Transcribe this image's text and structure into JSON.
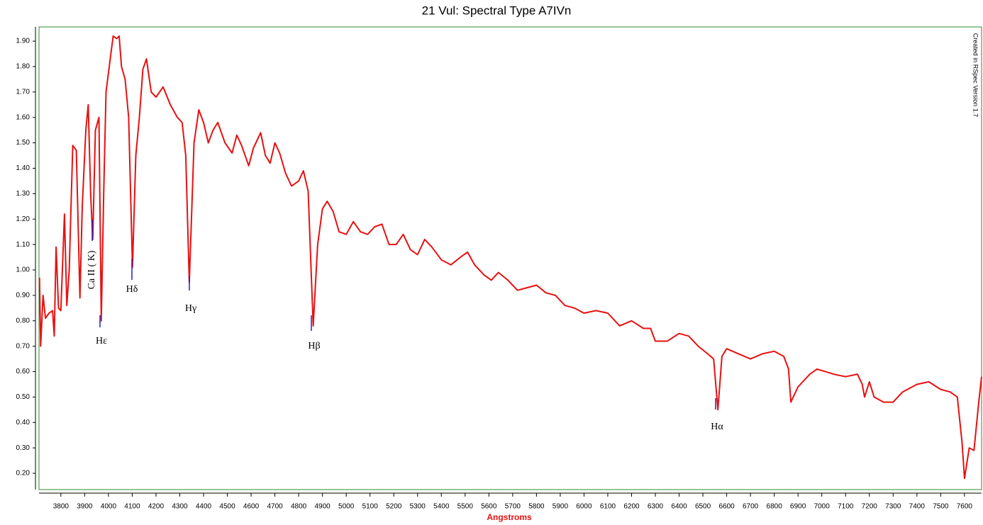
{
  "chart_data": {
    "type": "line",
    "title": "21 Vul: Spectral Type A7IVn",
    "xlabel": "Angstroms",
    "note": "Created in RSpec Version 1.7",
    "color": "#e81010",
    "xlim": [
      3708,
      7672
    ],
    "ylim": [
      0.136,
      1.956
    ],
    "xticks": [
      3800,
      3900,
      4000,
      4100,
      4200,
      4300,
      4400,
      4500,
      4600,
      4700,
      4800,
      4900,
      5000,
      5100,
      5200,
      5300,
      5400,
      5500,
      5600,
      5700,
      5800,
      5900,
      6000,
      6100,
      6200,
      6300,
      6400,
      6500,
      6600,
      6700,
      6800,
      6900,
      7000,
      7100,
      7200,
      7300,
      7400,
      7500,
      7600
    ],
    "yticks": [
      {
        "value": 0.2,
        "label": "0.20"
      },
      {
        "value": 0.3,
        "label": "0.30"
      },
      {
        "value": 0.4,
        "label": "0.40"
      },
      {
        "value": 0.5,
        "label": "0.50"
      },
      {
        "value": 0.6,
        "label": "0.60"
      },
      {
        "value": 0.7,
        "label": "0.70"
      },
      {
        "value": 0.8,
        "label": "0.80"
      },
      {
        "value": 0.9,
        "label": "0.90"
      },
      {
        "value": 1.0,
        "label": "1.00"
      },
      {
        "value": 1.1,
        "label": "1.10"
      },
      {
        "value": 1.2,
        "label": "1.20"
      },
      {
        "value": 1.3,
        "label": "1.30"
      },
      {
        "value": 1.4,
        "label": "1.40"
      },
      {
        "value": 1.5,
        "label": "1.50"
      },
      {
        "value": 1.6,
        "label": "1.60"
      },
      {
        "value": 1.7,
        "label": "1.70"
      },
      {
        "value": 1.8,
        "label": "1.80"
      },
      {
        "value": 1.9,
        "label": "1.90"
      }
    ],
    "annotations": [
      "Ca II ( K)",
      "Hε",
      "Hδ",
      "Hγ",
      "Hβ",
      "Hα"
    ],
    "x": [
      3710,
      3715,
      3725,
      3735,
      3750,
      3765,
      3772,
      3780,
      3790,
      3800,
      3815,
      3825,
      3835,
      3850,
      3865,
      3880,
      3890,
      3905,
      3915,
      3925,
      3934,
      3945,
      3960,
      3970,
      3980,
      3990,
      4010,
      4020,
      4035,
      4045,
      4055,
      4070,
      4085,
      4101,
      4115,
      4130,
      4145,
      4160,
      4180,
      4200,
      4230,
      4260,
      4290,
      4310,
      4325,
      4340,
      4360,
      4380,
      4400,
      4420,
      4440,
      4460,
      4490,
      4520,
      4540,
      4560,
      4590,
      4610,
      4640,
      4660,
      4680,
      4700,
      4720,
      4745,
      4770,
      4800,
      4820,
      4840,
      4861,
      4880,
      4900,
      4920,
      4945,
      4970,
      5000,
      5030,
      5060,
      5090,
      5120,
      5150,
      5180,
      5210,
      5240,
      5270,
      5300,
      5330,
      5360,
      5400,
      5440,
      5480,
      5510,
      5540,
      5580,
      5610,
      5640,
      5680,
      5720,
      5760,
      5800,
      5840,
      5880,
      5920,
      5960,
      6000,
      6050,
      6100,
      6150,
      6200,
      6250,
      6280,
      6300,
      6350,
      6400,
      6440,
      6480,
      6520,
      6545,
      6563,
      6580,
      6600,
      6650,
      6700,
      6750,
      6800,
      6840,
      6860,
      6870,
      6900,
      6950,
      6980,
      7050,
      7100,
      7150,
      7170,
      7180,
      7200,
      7220,
      7260,
      7300,
      7340,
      7400,
      7450,
      7500,
      7540,
      7570,
      7590,
      7600,
      7620,
      7640,
      7660,
      7672
    ],
    "values": [
      0.97,
      0.7,
      0.9,
      0.81,
      0.83,
      0.84,
      0.74,
      1.09,
      0.85,
      0.84,
      1.22,
      0.86,
      1.0,
      1.49,
      1.47,
      0.89,
      1.25,
      1.55,
      1.65,
      1.3,
      1.12,
      1.55,
      1.6,
      0.8,
      1.3,
      1.7,
      1.85,
      1.92,
      1.91,
      1.92,
      1.8,
      1.75,
      1.6,
      1.01,
      1.45,
      1.6,
      1.79,
      1.83,
      1.7,
      1.68,
      1.72,
      1.65,
      1.6,
      1.58,
      1.45,
      0.95,
      1.5,
      1.63,
      1.58,
      1.5,
      1.55,
      1.58,
      1.5,
      1.46,
      1.53,
      1.49,
      1.41,
      1.48,
      1.54,
      1.45,
      1.42,
      1.5,
      1.46,
      1.38,
      1.33,
      1.35,
      1.39,
      1.31,
      0.78,
      1.1,
      1.24,
      1.27,
      1.23,
      1.15,
      1.14,
      1.19,
      1.15,
      1.14,
      1.17,
      1.18,
      1.1,
      1.1,
      1.14,
      1.08,
      1.06,
      1.12,
      1.09,
      1.04,
      1.02,
      1.05,
      1.07,
      1.02,
      0.98,
      0.96,
      0.99,
      0.96,
      0.92,
      0.93,
      0.94,
      0.91,
      0.9,
      0.86,
      0.85,
      0.83,
      0.84,
      0.83,
      0.78,
      0.8,
      0.77,
      0.77,
      0.72,
      0.72,
      0.75,
      0.74,
      0.7,
      0.67,
      0.65,
      0.45,
      0.66,
      0.69,
      0.67,
      0.65,
      0.67,
      0.68,
      0.66,
      0.61,
      0.48,
      0.54,
      0.59,
      0.61,
      0.59,
      0.58,
      0.59,
      0.55,
      0.5,
      0.56,
      0.5,
      0.48,
      0.48,
      0.52,
      0.55,
      0.56,
      0.53,
      0.52,
      0.5,
      0.32,
      0.18,
      0.3,
      0.29,
      0.48,
      0.58
    ]
  }
}
